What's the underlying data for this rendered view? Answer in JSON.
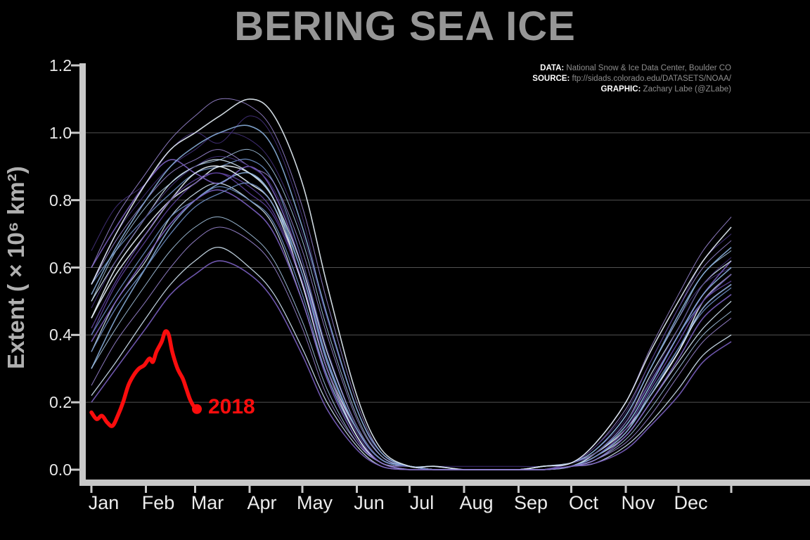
{
  "credits": [
    {
      "label": "DATA:",
      "text": " National Snow & Ice Data Center, Boulder CO"
    },
    {
      "label": "SOURCE:",
      "text": " ftp://sidads.colorado.edu/DATASETS/NOAA/"
    },
    {
      "label": "GRAPHIC:",
      "text": " Zachary Labe (@ZLabe)"
    }
  ],
  "chart_data": {
    "type": "line",
    "title": "BERING SEA ICE",
    "xlabel": "",
    "ylabel": "Extent (×10⁶ km²)",
    "ylim": [
      0,
      1.2
    ],
    "xlim_days": [
      1,
      365
    ],
    "grid": "horizontal",
    "legend": "none",
    "yticks": [
      0.0,
      0.2,
      0.4,
      0.6,
      0.8,
      1.0,
      1.2
    ],
    "ytick_labels": [
      "0.0",
      "0.2",
      "0.4",
      "0.6",
      "0.8",
      "1.0",
      "1.2"
    ],
    "x_months": [
      "Jan",
      "Feb",
      "Mar",
      "Apr",
      "May",
      "Jun",
      "Jul",
      "Aug",
      "Sep",
      "Oct",
      "Nov",
      "Dec"
    ],
    "month_start_days": [
      1,
      32,
      60,
      91,
      121,
      152,
      182,
      213,
      244,
      274,
      305,
      335
    ],
    "sample_days": [
      1,
      15,
      32,
      46,
      60,
      74,
      91,
      105,
      121,
      135,
      152,
      166,
      182,
      196,
      213,
      227,
      244,
      258,
      274,
      288,
      305,
      319,
      335,
      349,
      365
    ],
    "series": [
      {
        "name": "hist-01",
        "values": [
          0.65,
          0.78,
          0.85,
          0.95,
          1.0,
          0.97,
          1.05,
          0.98,
          0.75,
          0.45,
          0.18,
          0.04,
          0.01,
          0.01,
          0.01,
          0.01,
          0.01,
          0.01,
          0.02,
          0.06,
          0.15,
          0.3,
          0.45,
          0.55,
          0.6
        ]
      },
      {
        "name": "hist-02",
        "values": [
          0.55,
          0.65,
          0.75,
          0.82,
          0.88,
          0.9,
          0.92,
          0.85,
          0.62,
          0.35,
          0.13,
          0.03,
          0.01,
          0.0,
          0.0,
          0.0,
          0.0,
          0.0,
          0.02,
          0.05,
          0.13,
          0.25,
          0.4,
          0.5,
          0.58
        ]
      },
      {
        "name": "hist-03",
        "values": [
          0.45,
          0.6,
          0.72,
          0.8,
          0.85,
          0.9,
          0.88,
          0.8,
          0.55,
          0.3,
          0.12,
          0.03,
          0.01,
          0.0,
          0.0,
          0.0,
          0.0,
          0.01,
          0.02,
          0.05,
          0.12,
          0.22,
          0.35,
          0.5,
          0.58
        ]
      },
      {
        "name": "hist-04",
        "values": [
          0.55,
          0.68,
          0.8,
          0.88,
          0.92,
          0.95,
          0.9,
          0.85,
          0.65,
          0.4,
          0.15,
          0.04,
          0.01,
          0.01,
          0.0,
          0.0,
          0.0,
          0.01,
          0.02,
          0.07,
          0.18,
          0.32,
          0.48,
          0.6,
          0.68
        ]
      },
      {
        "name": "hist-05",
        "values": [
          0.35,
          0.5,
          0.62,
          0.75,
          0.82,
          0.85,
          0.8,
          0.72,
          0.5,
          0.28,
          0.1,
          0.02,
          0.01,
          0.0,
          0.0,
          0.0,
          0.0,
          0.0,
          0.01,
          0.04,
          0.1,
          0.2,
          0.32,
          0.42,
          0.5
        ]
      },
      {
        "name": "hist-06",
        "values": [
          0.6,
          0.72,
          0.85,
          0.92,
          0.88,
          0.85,
          0.9,
          0.82,
          0.6,
          0.33,
          0.12,
          0.03,
          0.01,
          0.0,
          0.0,
          0.0,
          0.0,
          0.0,
          0.02,
          0.05,
          0.14,
          0.26,
          0.4,
          0.52,
          0.62
        ]
      },
      {
        "name": "hist-07",
        "values": [
          0.5,
          0.65,
          0.78,
          0.85,
          0.9,
          0.92,
          0.95,
          0.88,
          0.68,
          0.42,
          0.16,
          0.04,
          0.01,
          0.01,
          0.0,
          0.0,
          0.0,
          0.01,
          0.02,
          0.06,
          0.16,
          0.3,
          0.45,
          0.58,
          0.65
        ]
      },
      {
        "name": "hist-08",
        "values": [
          0.4,
          0.55,
          0.68,
          0.78,
          0.85,
          0.88,
          0.82,
          0.75,
          0.55,
          0.3,
          0.1,
          0.02,
          0.01,
          0.0,
          0.0,
          0.0,
          0.0,
          0.0,
          0.01,
          0.04,
          0.12,
          0.24,
          0.38,
          0.5,
          0.56
        ]
      },
      {
        "name": "hist-09",
        "values": [
          0.3,
          0.45,
          0.6,
          0.72,
          0.8,
          0.85,
          0.88,
          0.8,
          0.58,
          0.32,
          0.12,
          0.03,
          0.01,
          0.0,
          0.0,
          0.0,
          0.0,
          0.0,
          0.01,
          0.05,
          0.13,
          0.25,
          0.4,
          0.52,
          0.6
        ]
      },
      {
        "name": "hist-10",
        "values": [
          0.55,
          0.7,
          0.82,
          0.9,
          0.95,
          1.0,
          0.98,
          0.9,
          0.7,
          0.45,
          0.18,
          0.05,
          0.01,
          0.01,
          0.0,
          0.0,
          0.0,
          0.01,
          0.02,
          0.07,
          0.17,
          0.32,
          0.48,
          0.62,
          0.7
        ]
      },
      {
        "name": "hist-11",
        "values": [
          0.4,
          0.52,
          0.65,
          0.75,
          0.8,
          0.84,
          0.8,
          0.73,
          0.52,
          0.28,
          0.1,
          0.02,
          0.01,
          0.0,
          0.0,
          0.0,
          0.0,
          0.0,
          0.01,
          0.04,
          0.11,
          0.23,
          0.36,
          0.47,
          0.54
        ]
      },
      {
        "name": "hist-12",
        "values": [
          0.45,
          0.58,
          0.7,
          0.8,
          0.88,
          0.9,
          0.85,
          0.78,
          0.55,
          0.3,
          0.1,
          0.02,
          0.01,
          0.0,
          0.0,
          0.0,
          0.0,
          0.0,
          0.01,
          0.04,
          0.11,
          0.22,
          0.35,
          0.48,
          0.55
        ]
      },
      {
        "name": "hist-13",
        "values": [
          0.6,
          0.75,
          0.88,
          0.98,
          1.05,
          1.1,
          1.08,
          1.0,
          0.78,
          0.5,
          0.2,
          0.05,
          0.01,
          0.01,
          0.0,
          0.0,
          0.0,
          0.01,
          0.02,
          0.08,
          0.2,
          0.36,
          0.52,
          0.65,
          0.75
        ]
      },
      {
        "name": "hist-14",
        "values": [
          0.5,
          0.62,
          0.75,
          0.85,
          0.9,
          0.92,
          0.88,
          0.8,
          0.6,
          0.35,
          0.13,
          0.03,
          0.01,
          0.0,
          0.0,
          0.0,
          0.0,
          0.0,
          0.01,
          0.05,
          0.14,
          0.28,
          0.42,
          0.55,
          0.62
        ]
      },
      {
        "name": "hist-15",
        "values": [
          0.38,
          0.5,
          0.63,
          0.73,
          0.8,
          0.83,
          0.78,
          0.7,
          0.5,
          0.27,
          0.09,
          0.02,
          0.0,
          0.0,
          0.0,
          0.0,
          0.0,
          0.0,
          0.01,
          0.03,
          0.1,
          0.2,
          0.33,
          0.45,
          0.52
        ]
      },
      {
        "name": "hist-16",
        "values": [
          0.3,
          0.42,
          0.55,
          0.65,
          0.72,
          0.75,
          0.7,
          0.62,
          0.44,
          0.24,
          0.08,
          0.02,
          0.0,
          0.0,
          0.0,
          0.0,
          0.0,
          0.0,
          0.01,
          0.03,
          0.09,
          0.18,
          0.3,
          0.4,
          0.47
        ]
      },
      {
        "name": "hist-17",
        "values": [
          0.42,
          0.56,
          0.7,
          0.8,
          0.86,
          0.88,
          0.84,
          0.76,
          0.56,
          0.3,
          0.11,
          0.02,
          0.01,
          0.0,
          0.0,
          0.0,
          0.0,
          0.0,
          0.01,
          0.04,
          0.12,
          0.24,
          0.38,
          0.5,
          0.58
        ]
      },
      {
        "name": "hist-18",
        "values": [
          0.52,
          0.66,
          0.8,
          0.9,
          0.96,
          1.0,
          1.02,
          0.95,
          0.72,
          0.46,
          0.18,
          0.05,
          0.01,
          0.01,
          0.0,
          0.0,
          0.0,
          0.01,
          0.02,
          0.06,
          0.16,
          0.3,
          0.46,
          0.58,
          0.66
        ]
      },
      {
        "name": "hist-19",
        "values": [
          0.48,
          0.62,
          0.75,
          0.84,
          0.9,
          0.93,
          0.9,
          0.83,
          0.62,
          0.36,
          0.13,
          0.03,
          0.01,
          0.0,
          0.0,
          0.0,
          0.0,
          0.0,
          0.02,
          0.05,
          0.14,
          0.27,
          0.42,
          0.55,
          0.63
        ]
      },
      {
        "name": "hist-20",
        "values": [
          0.35,
          0.48,
          0.6,
          0.7,
          0.78,
          0.82,
          0.85,
          0.78,
          0.58,
          0.33,
          0.12,
          0.03,
          0.01,
          0.0,
          0.0,
          0.0,
          0.0,
          0.0,
          0.01,
          0.04,
          0.11,
          0.22,
          0.36,
          0.48,
          0.55
        ]
      },
      {
        "name": "hist-21",
        "values": [
          0.55,
          0.7,
          0.85,
          0.95,
          1.0,
          1.05,
          1.1,
          1.05,
          0.85,
          0.55,
          0.22,
          0.06,
          0.01,
          0.01,
          0.0,
          0.0,
          0.0,
          0.01,
          0.02,
          0.08,
          0.2,
          0.35,
          0.5,
          0.62,
          0.72
        ]
      },
      {
        "name": "hist-22",
        "values": [
          0.25,
          0.38,
          0.5,
          0.6,
          0.68,
          0.72,
          0.68,
          0.6,
          0.42,
          0.22,
          0.08,
          0.02,
          0.0,
          0.0,
          0.0,
          0.0,
          0.0,
          0.0,
          0.01,
          0.03,
          0.08,
          0.16,
          0.28,
          0.38,
          0.45
        ]
      },
      {
        "name": "hist-23",
        "values": [
          0.22,
          0.32,
          0.45,
          0.55,
          0.62,
          0.66,
          0.6,
          0.52,
          0.36,
          0.2,
          0.07,
          0.01,
          0.0,
          0.0,
          0.0,
          0.0,
          0.0,
          0.0,
          0.01,
          0.02,
          0.07,
          0.14,
          0.24,
          0.34,
          0.4
        ]
      },
      {
        "name": "hist-24",
        "values": [
          0.2,
          0.3,
          0.42,
          0.52,
          0.58,
          0.62,
          0.58,
          0.5,
          0.34,
          0.18,
          0.06,
          0.01,
          0.0,
          0.0,
          0.0,
          0.0,
          0.0,
          0.0,
          0.01,
          0.02,
          0.06,
          0.13,
          0.22,
          0.32,
          0.38
        ]
      }
    ],
    "highlight_series": {
      "name": "2018",
      "label": "2018",
      "days": [
        1,
        4,
        7,
        10,
        13,
        16,
        19,
        22,
        25,
        28,
        31,
        34,
        36,
        38,
        41,
        43,
        45,
        47,
        50,
        53,
        55,
        57,
        59,
        61
      ],
      "values": [
        0.17,
        0.15,
        0.16,
        0.14,
        0.13,
        0.16,
        0.2,
        0.25,
        0.28,
        0.3,
        0.31,
        0.33,
        0.32,
        0.35,
        0.38,
        0.41,
        0.4,
        0.35,
        0.3,
        0.27,
        0.24,
        0.21,
        0.19,
        0.18
      ]
    },
    "colors": {
      "background": "#000000",
      "axis": "#c9c9c9",
      "grid": "#525252",
      "title": "#969696",
      "tick_label": "#e8e8e8",
      "ylabel": "#b0b0b0",
      "highlight": "#fb0d0d",
      "historical_palette": [
        "#46327e",
        "#5f44a0",
        "#7a5fc0",
        "#9a86d2",
        "#6e8fc4",
        "#87add8",
        "#a9c9e6",
        "#cfe2f1",
        "#e6eff7"
      ]
    }
  }
}
